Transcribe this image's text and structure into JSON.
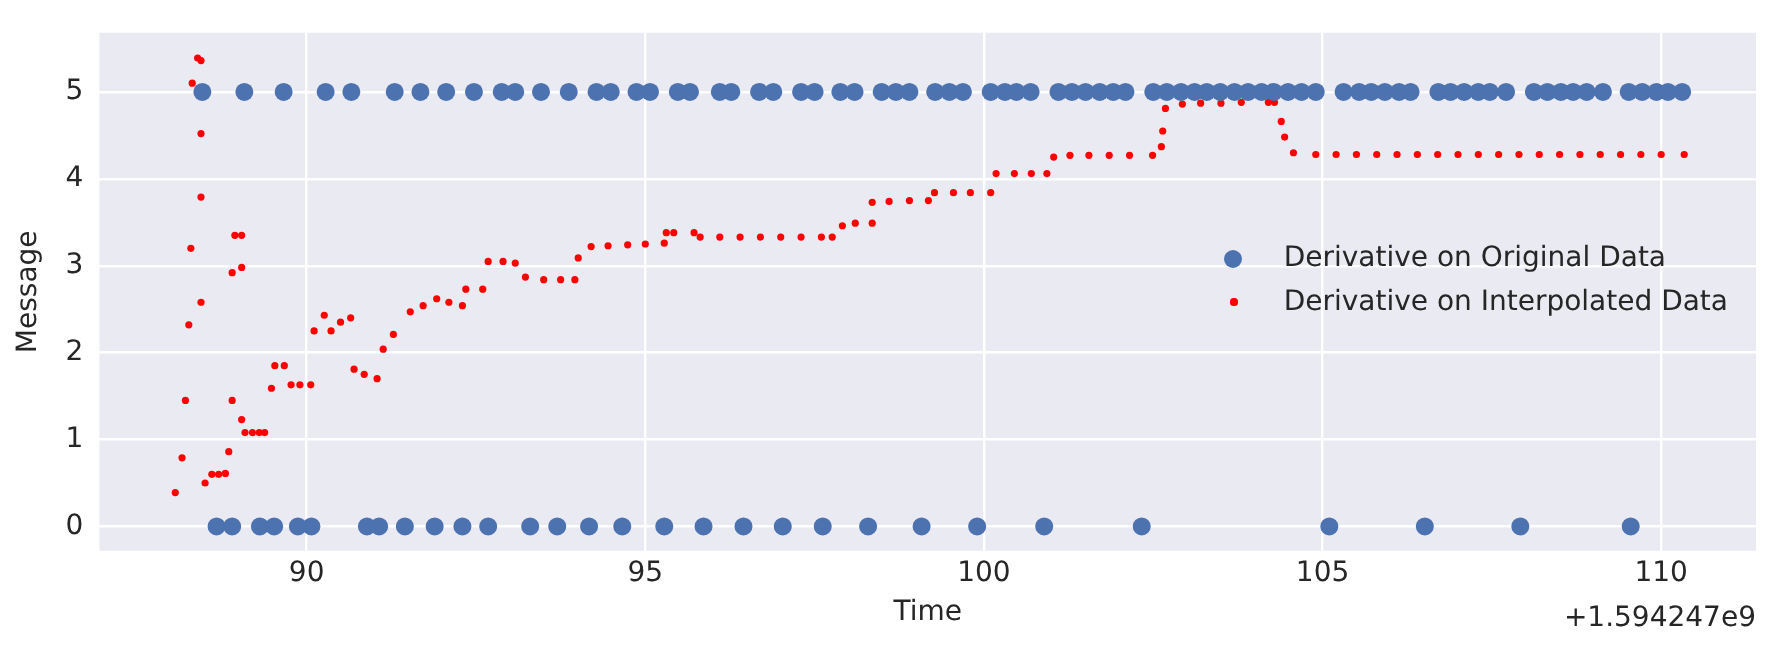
{
  "chart_data": {
    "type": "scatter",
    "xlabel": "Time",
    "ylabel": "Message",
    "annotations": [
      "+1.594247e9"
    ],
    "xlim": [
      86.94,
      111.4
    ],
    "ylim": [
      -0.28,
      5.68
    ],
    "xticks": [
      90,
      95,
      100,
      105,
      110
    ],
    "yticks": [
      0,
      1,
      2,
      3,
      4,
      5
    ],
    "grid": true,
    "legend": "right",
    "marker": "circle",
    "series": [
      {
        "name": "Derivative on Original Data",
        "color": "#4c72b0",
        "x": [
          88.46,
          89.08,
          89.66,
          90.28,
          90.66,
          91.3,
          91.68,
          92.06,
          92.47,
          92.88,
          93.08,
          93.46,
          93.87,
          94.28,
          94.49,
          94.87,
          95.07,
          95.48,
          95.66,
          96.1,
          96.27,
          96.68,
          96.89,
          97.3,
          97.5,
          97.88,
          98.09,
          98.49,
          98.7,
          98.9,
          99.28,
          99.49,
          99.69,
          100.1,
          100.31,
          100.48,
          100.69,
          101.1,
          101.3,
          101.5,
          101.71,
          101.91,
          102.09,
          102.5,
          102.7,
          102.91,
          103.11,
          103.29,
          103.49,
          103.7,
          103.9,
          104.1,
          104.28,
          104.49,
          104.69,
          104.9,
          105.31,
          105.54,
          105.72,
          105.92,
          106.13,
          106.3,
          106.71,
          106.89,
          107.09,
          107.3,
          107.47,
          107.71,
          108.12,
          108.32,
          108.52,
          108.7,
          108.9,
          109.14,
          109.52,
          109.72,
          109.93,
          110.1,
          110.31,
          88.67,
          88.9,
          89.31,
          89.52,
          89.87,
          90.07,
          90.89,
          91.07,
          91.45,
          91.89,
          92.3,
          92.68,
          93.3,
          93.7,
          94.17,
          94.66,
          95.28,
          95.86,
          96.45,
          97.03,
          97.62,
          98.29,
          99.08,
          99.9,
          100.89,
          102.33,
          105.1,
          106.51,
          107.92,
          109.55
        ],
        "values": [
          5,
          5,
          5,
          5,
          5,
          5,
          5,
          5,
          5,
          5,
          5,
          5,
          5,
          5,
          5,
          5,
          5,
          5,
          5,
          5,
          5,
          5,
          5,
          5,
          5,
          5,
          5,
          5,
          5,
          5,
          5,
          5,
          5,
          5,
          5,
          5,
          5,
          5,
          5,
          5,
          5,
          5,
          5,
          5,
          5,
          5,
          5,
          5,
          5,
          5,
          5,
          5,
          5,
          5,
          5,
          5,
          5,
          5,
          5,
          5,
          5,
          5,
          5,
          5,
          5,
          5,
          5,
          5,
          5,
          5,
          5,
          5,
          5,
          5,
          5,
          5,
          5,
          5,
          5,
          0,
          0,
          0,
          0,
          0,
          0,
          0,
          0,
          0,
          0,
          0,
          0,
          0,
          0,
          0,
          0,
          0,
          0,
          0,
          0,
          0,
          0,
          0,
          0,
          0,
          0,
          0,
          0,
          0,
          0
        ]
      },
      {
        "name": "Derivative on Interpolated Data",
        "color": "#ff0000",
        "x": [
          88.06,
          88.16,
          88.21,
          88.26,
          88.29,
          88.31,
          88.39,
          88.44,
          88.44,
          88.44,
          88.44,
          88.5,
          88.6,
          88.7,
          88.8,
          88.85,
          88.9,
          88.9,
          88.94,
          89.04,
          89.04,
          89.04,
          89.09,
          89.2,
          89.3,
          89.38,
          89.48,
          89.53,
          89.67,
          89.77,
          89.9,
          90.06,
          90.11,
          90.26,
          90.36,
          90.5,
          90.65,
          90.7,
          90.85,
          91.04,
          91.13,
          91.28,
          91.53,
          91.72,
          91.92,
          92.1,
          92.3,
          92.35,
          92.6,
          92.68,
          92.9,
          93.08,
          93.23,
          93.5,
          93.75,
          93.96,
          94.01,
          94.2,
          94.45,
          94.74,
          95.0,
          95.28,
          95.31,
          95.42,
          95.72,
          95.81,
          96.1,
          96.4,
          96.7,
          97.0,
          97.3,
          97.6,
          97.76,
          97.91,
          98.1,
          98.35,
          98.35,
          98.6,
          98.9,
          99.18,
          99.27,
          99.55,
          99.8,
          100.1,
          100.18,
          100.45,
          100.7,
          100.93,
          101.03,
          101.27,
          101.55,
          101.85,
          102.15,
          102.49,
          102.62,
          102.64,
          102.68,
          102.93,
          103.2,
          103.5,
          103.8,
          104.2,
          104.29,
          104.39,
          104.44,
          104.57,
          104.9,
          105.2,
          105.5,
          105.8,
          106.1,
          106.4,
          106.7,
          107.0,
          107.3,
          107.6,
          107.9,
          108.2,
          108.5,
          108.8,
          109.1,
          109.4,
          109.7,
          110.0,
          110.34
        ],
        "values": [
          0.39,
          0.79,
          1.45,
          2.32,
          3.2,
          5.1,
          5.39,
          5.36,
          4.52,
          3.79,
          2.58,
          0.5,
          0.6,
          0.6,
          0.61,
          0.86,
          1.45,
          2.92,
          3.35,
          3.35,
          2.98,
          1.23,
          1.08,
          1.08,
          1.08,
          1.08,
          1.59,
          1.85,
          1.85,
          1.63,
          1.63,
          1.63,
          2.25,
          2.43,
          2.25,
          2.35,
          2.4,
          1.81,
          1.75,
          1.7,
          2.04,
          2.21,
          2.47,
          2.54,
          2.62,
          2.58,
          2.54,
          2.73,
          2.73,
          3.05,
          3.05,
          3.03,
          2.87,
          2.84,
          2.84,
          2.84,
          3.09,
          3.22,
          3.23,
          3.24,
          3.25,
          3.26,
          3.38,
          3.38,
          3.38,
          3.33,
          3.33,
          3.33,
          3.33,
          3.33,
          3.33,
          3.33,
          3.33,
          3.46,
          3.49,
          3.49,
          3.73,
          3.74,
          3.75,
          3.75,
          3.84,
          3.84,
          3.84,
          3.84,
          4.06,
          4.06,
          4.06,
          4.06,
          4.25,
          4.27,
          4.27,
          4.27,
          4.27,
          4.27,
          4.37,
          4.55,
          4.81,
          4.86,
          4.87,
          4.87,
          4.88,
          4.88,
          4.88,
          4.66,
          4.48,
          4.3,
          4.28,
          4.28,
          4.28,
          4.28,
          4.28,
          4.28,
          4.28,
          4.28,
          4.28,
          4.28,
          4.28,
          4.28,
          4.28,
          4.28,
          4.28,
          4.28,
          4.28,
          4.28,
          4.28
        ]
      }
    ]
  }
}
